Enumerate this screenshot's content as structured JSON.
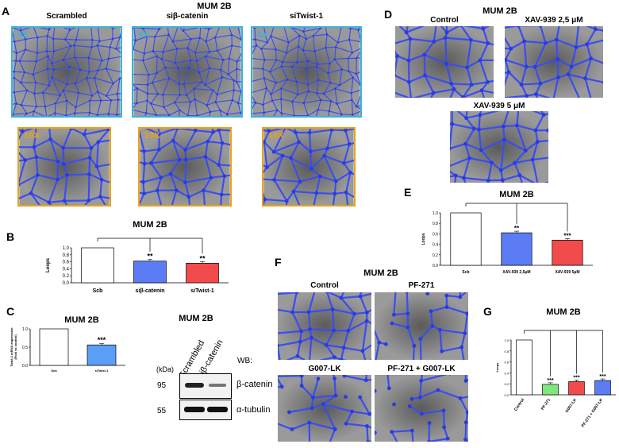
{
  "panelA": {
    "letter": "A",
    "title": "MUM 2B",
    "columns": [
      "Scrambled",
      "siβ-catenin",
      "siTwist-1"
    ],
    "mag_low": "4X",
    "mag_high": "10X"
  },
  "panelB": {
    "letter": "B",
    "chart_data": {
      "type": "bar",
      "title": "MUM 2B",
      "ylabel": "Loops",
      "categories": [
        "Scb",
        "siβ-catenin",
        "siTwist-1"
      ],
      "values": [
        1.0,
        0.62,
        0.56
      ],
      "significance": [
        "",
        "**",
        "**"
      ],
      "colors": [
        "#ffffff",
        "#5b7cf5",
        "#f24b4b"
      ],
      "ylim": [
        0,
        1.0
      ],
      "yticks": [
        "0.0",
        "0.2",
        "0.4",
        "0.6",
        "0.8",
        "1.0"
      ]
    }
  },
  "panelC": {
    "letter": "C",
    "chart_data": {
      "type": "bar",
      "title": "MUM 2B",
      "ylabel": "Twist-1 mRNA expression\n(Fold vs control)",
      "categories": [
        "Scb",
        "siTwist-1"
      ],
      "values": [
        1.0,
        0.56
      ],
      "significance": [
        "",
        "***"
      ],
      "colors": [
        "#ffffff",
        "#5b9ef5"
      ],
      "ylim": [
        0,
        1.0
      ],
      "yticks": [
        "0.0",
        "0.5",
        "1.0"
      ]
    },
    "wb": {
      "title": "MUM 2B",
      "lanes": [
        "Scrambled",
        "siβ-catenin"
      ],
      "wb_label": "WB:",
      "kda_label": "(kDa)",
      "bands": [
        {
          "kda": "95",
          "name": "β-catenin"
        },
        {
          "kda": "55",
          "name": "α-tubulin"
        }
      ]
    }
  },
  "panelD": {
    "letter": "D",
    "title": "MUM 2B",
    "images": [
      "Control",
      "XAV-939 2,5 μM",
      "XAV-939 5 μM"
    ]
  },
  "panelE": {
    "letter": "E",
    "chart_data": {
      "type": "bar",
      "title": "MUM 2B",
      "ylabel": "Loops",
      "categories": [
        "Scb",
        "XAV-939 2,5μM",
        "XAV-939 5μM"
      ],
      "values": [
        1.0,
        0.62,
        0.48
      ],
      "significance": [
        "",
        "**",
        "***"
      ],
      "colors": [
        "#ffffff",
        "#5b7cf5",
        "#f24b4b"
      ],
      "ylim": [
        0,
        1.0
      ],
      "yticks": [
        "0.0",
        "0.2",
        "0.4",
        "0.6",
        "0.8",
        "1.0"
      ]
    }
  },
  "panelF": {
    "letter": "F",
    "title": "MUM 2B",
    "images": [
      "Control",
      "PF-271",
      "G007-LK",
      "PF-271 + G007-LK"
    ]
  },
  "panelG": {
    "letter": "G",
    "chart_data": {
      "type": "bar",
      "title": "MUM 2B",
      "ylabel": "Loops",
      "categories": [
        "Control",
        "PF-271",
        "G007-LK",
        "PF-271 + G007-LK"
      ],
      "values": [
        1.0,
        0.19,
        0.24,
        0.26
      ],
      "significance": [
        "",
        "***",
        "***",
        "***"
      ],
      "colors": [
        "#ffffff",
        "#7ee87e",
        "#f24b4b",
        "#5b7cf5"
      ],
      "ylim": [
        0,
        1.0
      ],
      "yticks": [
        "0.0",
        "0.2",
        "0.4",
        "0.6",
        "0.8",
        "1.0"
      ]
    }
  }
}
